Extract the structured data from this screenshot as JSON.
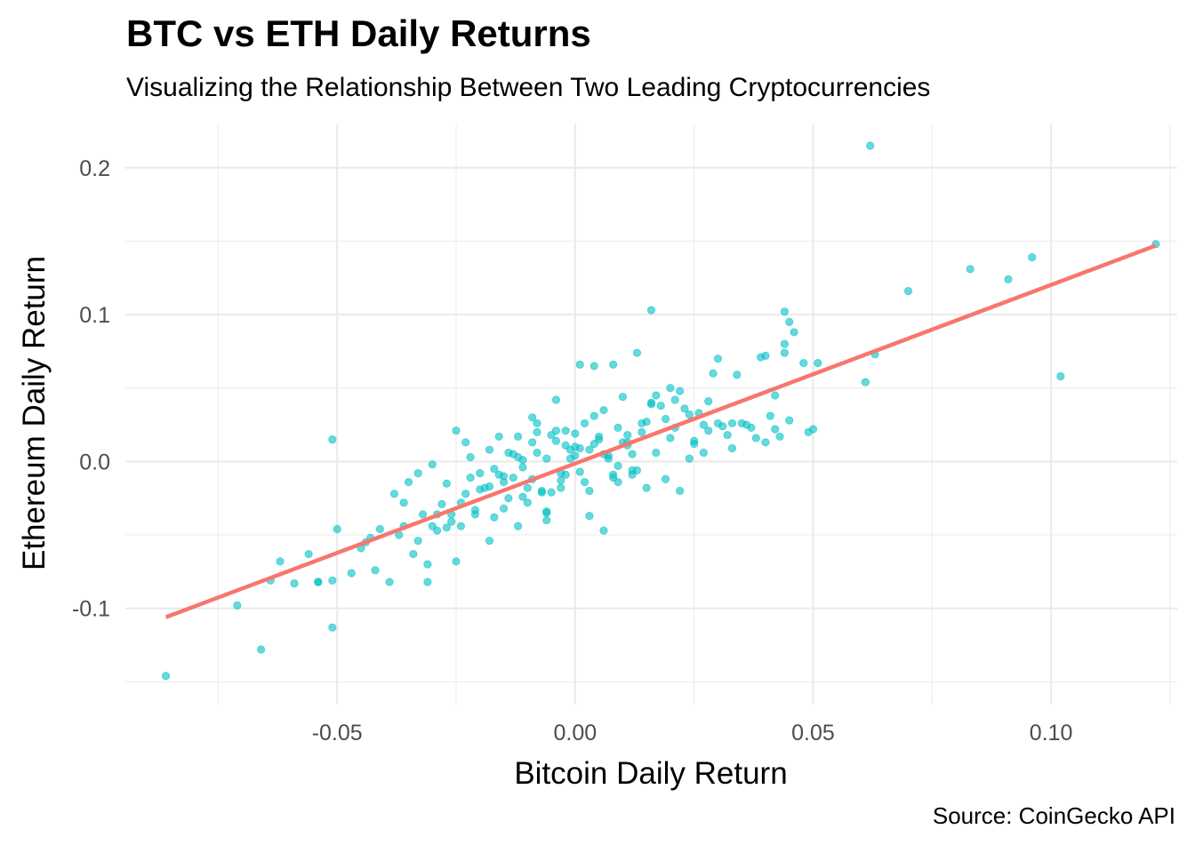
{
  "chart_data": {
    "type": "scatter",
    "title": "BTC vs ETH Daily Returns",
    "subtitle": "Visualizing the Relationship Between Two Leading Cryptocurrencies",
    "caption": "Source: CoinGecko API",
    "xlabel": "Bitcoin Daily Return",
    "ylabel": "Ethereum Daily Return",
    "xlim": [
      -0.0945,
      0.1265
    ],
    "ylim": [
      -0.1655,
      0.2295
    ],
    "x_ticks": [
      -0.05,
      0.0,
      0.05,
      0.1
    ],
    "x_tick_labels": [
      "-0.05",
      "0.00",
      "0.05",
      "0.10"
    ],
    "y_ticks": [
      -0.1,
      0.0,
      0.1,
      0.2
    ],
    "y_tick_labels": [
      "-0.1",
      "0.0",
      "0.1",
      "0.2"
    ],
    "grid": true,
    "legend": "none",
    "colors": {
      "points": "#00BFC4",
      "trend_line": "#F8766D",
      "grid": "#ebebeb"
    },
    "trend_line": {
      "type": "linear fit",
      "x": [
        -0.086,
        0.122
      ],
      "y": [
        -0.106,
        0.147
      ]
    },
    "points": {
      "x": [
        -0.086,
        -0.071,
        -0.066,
        -0.064,
        -0.062,
        -0.059,
        -0.056,
        -0.054,
        -0.054,
        -0.051,
        -0.051,
        -0.051,
        -0.05,
        -0.047,
        -0.045,
        -0.044,
        -0.043,
        -0.042,
        -0.041,
        -0.039,
        -0.038,
        -0.037,
        -0.036,
        -0.035,
        -0.034,
        -0.033,
        -0.032,
        -0.031,
        -0.031,
        -0.03,
        -0.03,
        -0.029,
        -0.028,
        -0.027,
        -0.026,
        -0.025,
        -0.024,
        -0.023,
        -0.023,
        -0.022,
        -0.021,
        -0.02,
        -0.018,
        -0.017,
        -0.016,
        -0.015,
        -0.014,
        -0.013,
        -0.012,
        -0.011,
        -0.01,
        -0.009,
        -0.008,
        -0.007,
        -0.006,
        -0.005,
        -0.004,
        -0.003,
        -0.002,
        -0.001,
        0.0,
        0.001,
        0.002,
        0.003,
        0.004,
        0.005,
        0.006,
        0.007,
        0.008,
        0.009,
        0.01,
        0.011,
        0.012,
        0.013,
        0.014,
        0.015,
        0.016,
        0.018,
        0.019,
        0.02,
        0.021,
        0.022,
        0.023,
        0.024,
        0.025,
        0.026,
        0.027,
        0.028,
        0.029,
        0.03,
        0.031,
        0.032,
        0.034,
        0.035,
        0.037,
        0.039,
        0.04,
        0.041,
        0.042,
        0.043,
        0.044,
        0.045,
        0.046,
        0.048,
        0.049,
        0.05,
        0.051,
        0.061,
        0.062,
        0.063,
        0.07,
        0.083,
        0.091,
        0.096,
        0.102,
        0.122,
        -0.024,
        -0.022,
        -0.018,
        -0.015,
        -0.013,
        -0.011,
        -0.009,
        -0.007,
        -0.005,
        -0.003,
        -0.001,
        0.001,
        0.003,
        0.005,
        0.007,
        0.009,
        0.011,
        0.013,
        0.015,
        0.017,
        0.019,
        -0.02,
        -0.017,
        -0.014,
        -0.012,
        -0.01,
        -0.008,
        -0.006,
        -0.004,
        -0.002,
        0.0,
        0.002,
        0.004,
        0.006,
        0.008,
        0.01,
        0.012,
        0.014,
        -0.027,
        -0.025,
        -0.019,
        -0.016,
        -0.012,
        -0.008,
        -0.006,
        -0.004,
        -0.002,
        0.001,
        0.003,
        0.006,
        0.009,
        0.012,
        0.016,
        0.02,
        0.024,
        0.028,
        0.033,
        0.038,
        0.036,
        0.033,
        0.027,
        0.022,
        -0.036,
        -0.033,
        -0.029,
        -0.026,
        -0.021,
        -0.018,
        -0.015,
        -0.011,
        -0.009,
        -0.006,
        -0.003,
        0.0,
        0.004,
        0.008,
        0.011,
        0.017,
        0.021,
        0.025,
        0.03,
        0.042,
        0.016,
        0.044,
        0.045,
        0.044,
        0.04
      ],
      "y": [
        -0.146,
        -0.098,
        -0.128,
        -0.081,
        -0.068,
        -0.083,
        -0.063,
        -0.082,
        -0.082,
        -0.113,
        0.015,
        -0.081,
        -0.046,
        -0.076,
        -0.059,
        -0.055,
        -0.052,
        -0.074,
        -0.046,
        -0.082,
        -0.022,
        -0.05,
        -0.044,
        -0.014,
        -0.063,
        -0.054,
        -0.036,
        -0.082,
        -0.07,
        -0.044,
        -0.002,
        -0.036,
        -0.029,
        -0.015,
        -0.041,
        -0.068,
        -0.044,
        -0.022,
        0.013,
        -0.011,
        -0.036,
        -0.008,
        -0.054,
        -0.038,
        0.017,
        -0.032,
        -0.025,
        -0.011,
        0.003,
        -0.024,
        -0.018,
        0.03,
        0.006,
        -0.02,
        -0.034,
        -0.021,
        0.014,
        -0.008,
        0.021,
        0.008,
        0.004,
        -0.007,
        0.026,
        0.008,
        0.012,
        0.015,
        -0.047,
        0.002,
        0.066,
        0.023,
        0.044,
        0.018,
        0.005,
        0.074,
        0.026,
        -0.018,
        0.103,
        0.038,
        0.029,
        0.016,
        0.023,
        0.048,
        0.036,
        0.002,
        0.014,
        0.033,
        0.025,
        0.041,
        0.06,
        0.07,
        0.024,
        0.018,
        0.059,
        0.026,
        0.023,
        0.071,
        0.013,
        0.031,
        0.045,
        0.017,
        0.08,
        0.095,
        0.088,
        0.067,
        0.02,
        0.022,
        0.067,
        0.054,
        0.215,
        0.073,
        0.116,
        0.131,
        0.124,
        0.139,
        0.058,
        0.148,
        -0.028,
        0.003,
        0.008,
        -0.014,
        0.005,
        -0.004,
        0.013,
        -0.021,
        0.018,
        -0.013,
        0.002,
        0.009,
        -0.02,
        0.017,
        0.004,
        -0.003,
        0.011,
        -0.006,
        0.027,
        0.006,
        -0.012,
        -0.019,
        -0.005,
        0.006,
        0.017,
        -0.028,
        0.026,
        -0.035,
        0.021,
        -0.009,
        0.01,
        -0.014,
        0.031,
        0.035,
        -0.009,
        0.013,
        -0.006,
        0.02,
        -0.045,
        0.021,
        -0.018,
        -0.009,
        -0.044,
        0.02,
        -0.04,
        0.042,
        0.011,
        0.066,
        -0.037,
        0.005,
        -0.014,
        -0.009,
        0.04,
        0.05,
        0.032,
        0.021,
        0.026,
        0.016,
        0.025,
        0.009,
        0.006,
        -0.02,
        -0.028,
        -0.008,
        -0.047,
        -0.036,
        -0.033,
        -0.017,
        -0.01,
        0.001,
        -0.012,
        0.002,
        -0.018,
        0.019,
        0.065,
        -0.011,
        0.013,
        0.045,
        0.042,
        0.012,
        0.026,
        0.022,
        0.039,
        0.102,
        0.028,
        0.074,
        0.072
      ]
    }
  }
}
